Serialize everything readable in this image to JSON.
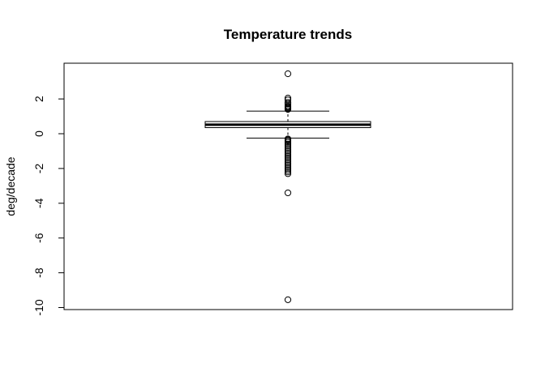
{
  "chart_data": {
    "type": "boxplot",
    "title": "Temperature trends",
    "xlabel": "",
    "ylabel": "deg/decade",
    "ylim": [
      -10,
      3.8
    ],
    "yticks": [
      -10,
      -8,
      -6,
      -4,
      -2,
      0,
      2
    ],
    "ytick_labels": [
      "-10",
      "-8",
      "-6",
      "-4",
      "-2",
      "0",
      "2"
    ],
    "grid": false,
    "box": {
      "whisker_low": -0.25,
      "q1": 0.35,
      "median": 0.52,
      "q3": 0.7,
      "whisker_high": 1.3
    },
    "outliers": [
      3.45,
      2.05,
      1.95,
      1.8,
      1.7,
      1.6,
      1.55,
      1.5,
      1.45,
      1.4,
      -0.3,
      -0.35,
      -0.42,
      -0.5,
      -0.6,
      -0.7,
      -0.8,
      -0.9,
      -1.0,
      -1.1,
      -1.2,
      -1.3,
      -1.4,
      -1.5,
      -1.6,
      -1.7,
      -1.8,
      -1.9,
      -2.0,
      -2.1,
      -2.2,
      -2.3,
      -3.4,
      -9.55
    ]
  }
}
